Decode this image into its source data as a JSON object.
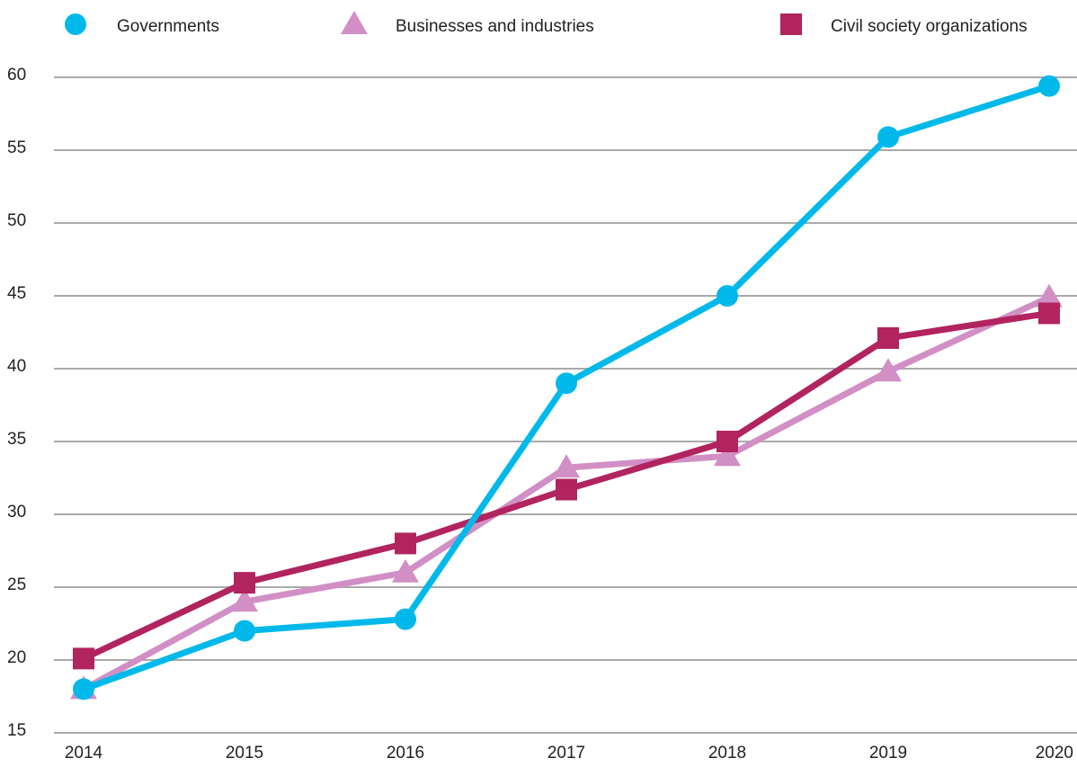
{
  "chart_data": {
    "type": "line",
    "categories": [
      "2014",
      "2015",
      "2016",
      "2017",
      "2018",
      "2019",
      "2020"
    ],
    "series": [
      {
        "name": "Governments",
        "color": "#00b9ea",
        "marker": "circle",
        "values": [
          18,
          22,
          22.8,
          39,
          45,
          55.9,
          59.4
        ]
      },
      {
        "name": "Businesses and industries",
        "color": "#d18fc5",
        "marker": "triangle",
        "values": [
          18,
          24,
          26,
          33.2,
          34,
          39.8,
          44.9
        ]
      },
      {
        "name": "Civil society organizations",
        "color": "#b1245f",
        "marker": "square",
        "values": [
          20.1,
          25.3,
          28,
          31.7,
          35,
          42.1,
          43.8
        ]
      }
    ],
    "ylim": [
      15,
      60
    ],
    "yticks": [
      15,
      20,
      25,
      30,
      35,
      40,
      45,
      50,
      55,
      60
    ],
    "grid": true,
    "legend": "top"
  }
}
